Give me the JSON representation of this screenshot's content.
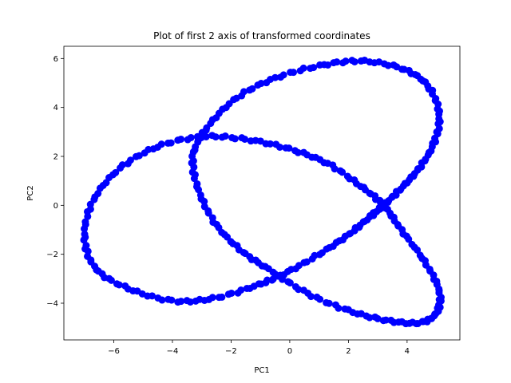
{
  "chart_data": {
    "type": "scatter",
    "title": "Plot of first 2 axis of transformed coordinates",
    "xlabel": "PC1",
    "ylabel": "PC2",
    "xlim": [
      -7.7,
      5.8
    ],
    "ylim": [
      -5.5,
      6.5
    ],
    "xticks": [
      -6,
      -4,
      -2,
      0,
      2,
      4
    ],
    "yticks": [
      -4,
      -2,
      0,
      2,
      4,
      6
    ],
    "grid": false,
    "legend": "none",
    "marker_color": "#0000ff",
    "shape": "trefoil-knot projection",
    "series": [
      {
        "name": "",
        "control_points": [
          [
            -0.2,
            -2.8
          ],
          [
            1.0,
            -2.0
          ],
          [
            2.0,
            -1.2
          ],
          [
            2.7,
            -0.5
          ],
          [
            3.2,
            0.0
          ],
          [
            3.8,
            0.7
          ],
          [
            4.4,
            1.5
          ],
          [
            4.9,
            2.5
          ],
          [
            5.1,
            3.7
          ],
          [
            4.7,
            4.9
          ],
          [
            3.8,
            5.6
          ],
          [
            2.4,
            5.9
          ],
          [
            1.0,
            5.7
          ],
          [
            -0.5,
            5.2
          ],
          [
            -1.8,
            4.4
          ],
          [
            -2.8,
            3.2
          ],
          [
            -3.3,
            2.0
          ],
          [
            -3.1,
            0.6
          ],
          [
            -2.5,
            -0.8
          ],
          [
            -1.6,
            -1.9
          ],
          [
            -0.6,
            -2.7
          ],
          [
            0.6,
            -3.6
          ],
          [
            2.0,
            -4.3
          ],
          [
            3.3,
            -4.7
          ],
          [
            4.4,
            -4.8
          ],
          [
            5.0,
            -4.4
          ],
          [
            5.1,
            -3.5
          ],
          [
            4.6,
            -2.3
          ],
          [
            3.8,
            -1.0
          ],
          [
            3.2,
            0.0
          ],
          [
            2.4,
            0.8
          ],
          [
            1.3,
            1.7
          ],
          [
            0.0,
            2.3
          ],
          [
            -1.5,
            2.7
          ],
          [
            -3.0,
            2.8
          ],
          [
            -4.5,
            2.4
          ],
          [
            -5.8,
            1.5
          ],
          [
            -6.7,
            0.2
          ],
          [
            -7.0,
            -1.3
          ],
          [
            -6.6,
            -2.6
          ],
          [
            -5.5,
            -3.4
          ],
          [
            -4.0,
            -3.9
          ],
          [
            -2.6,
            -3.8
          ],
          [
            -1.2,
            -3.3
          ],
          [
            -0.2,
            -2.8
          ]
        ]
      }
    ]
  }
}
